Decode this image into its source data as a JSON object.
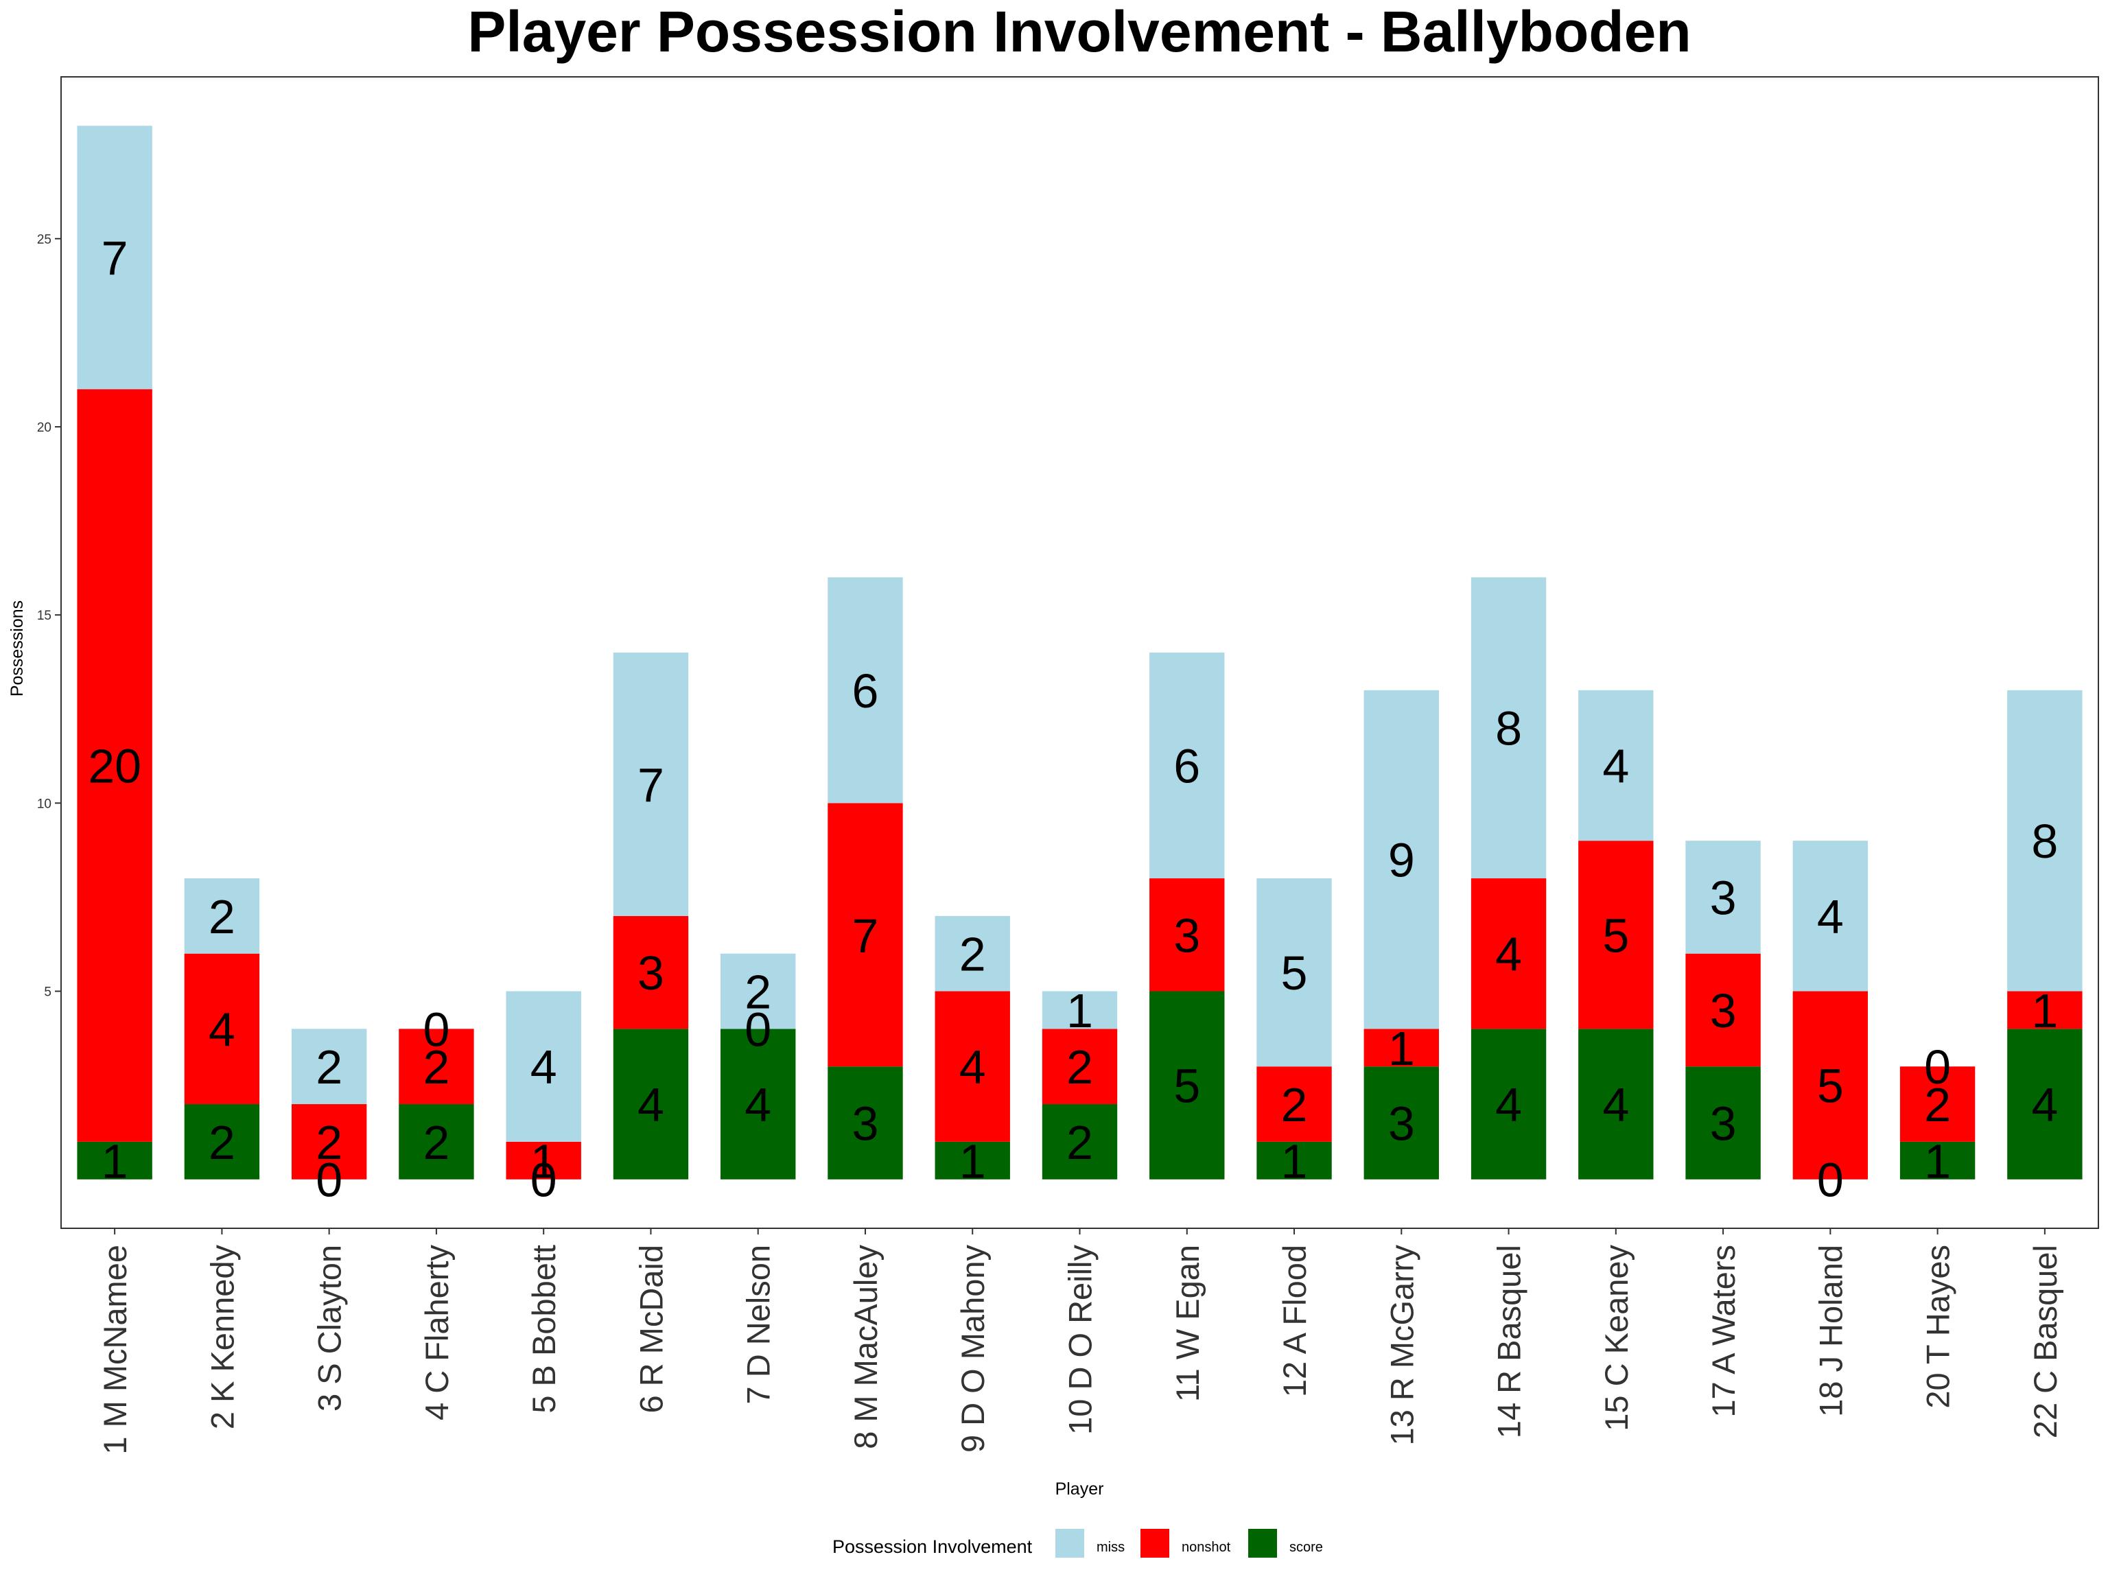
{
  "chart_data": {
    "type": "bar",
    "title": "Player Possession Involvement - Ballyboden",
    "xlabel": "Player",
    "ylabel": "Possessions",
    "ylim": [
      -1.3,
      29.3
    ],
    "yticks": [
      5,
      10,
      15,
      20,
      25
    ],
    "categories": [
      "1 M McNamee",
      "2 K Kennedy",
      "3 S Clayton",
      "4 C Flaherty",
      "5 B Bobbett",
      "6 R McDaid",
      "7 D Nelson",
      "8 M MacAuley",
      "9 D O Mahony",
      "10 D O Reilly",
      "11 W Egan",
      "12 A Flood",
      "13 R McGarry",
      "14 R Basquel",
      "15 C Keaney",
      "17 A Waters",
      "18 J Holand",
      "20 T Hayes",
      "22 C Basquel"
    ],
    "series": [
      {
        "name": "score",
        "color": "#006400",
        "values": [
          1,
          2,
          0,
          2,
          0,
          4,
          4,
          3,
          1,
          2,
          5,
          1,
          3,
          4,
          4,
          3,
          0,
          1,
          4
        ]
      },
      {
        "name": "nonshot",
        "color": "#FF0000",
        "values": [
          20,
          4,
          2,
          2,
          1,
          3,
          0,
          7,
          4,
          2,
          3,
          2,
          1,
          4,
          5,
          3,
          5,
          2,
          1
        ]
      },
      {
        "name": "miss",
        "color": "#ADD8E6",
        "values": [
          7,
          2,
          2,
          0,
          4,
          7,
          2,
          6,
          2,
          1,
          6,
          5,
          9,
          8,
          4,
          3,
          4,
          0,
          8
        ]
      }
    ],
    "legend": {
      "title": "Possession Involvement",
      "position": "bottom",
      "entries": [
        {
          "name": "miss",
          "color": "#ADD8E6"
        },
        {
          "name": "nonshot",
          "color": "#FF0000"
        },
        {
          "name": "score",
          "color": "#006400"
        }
      ]
    },
    "grid": false
  }
}
